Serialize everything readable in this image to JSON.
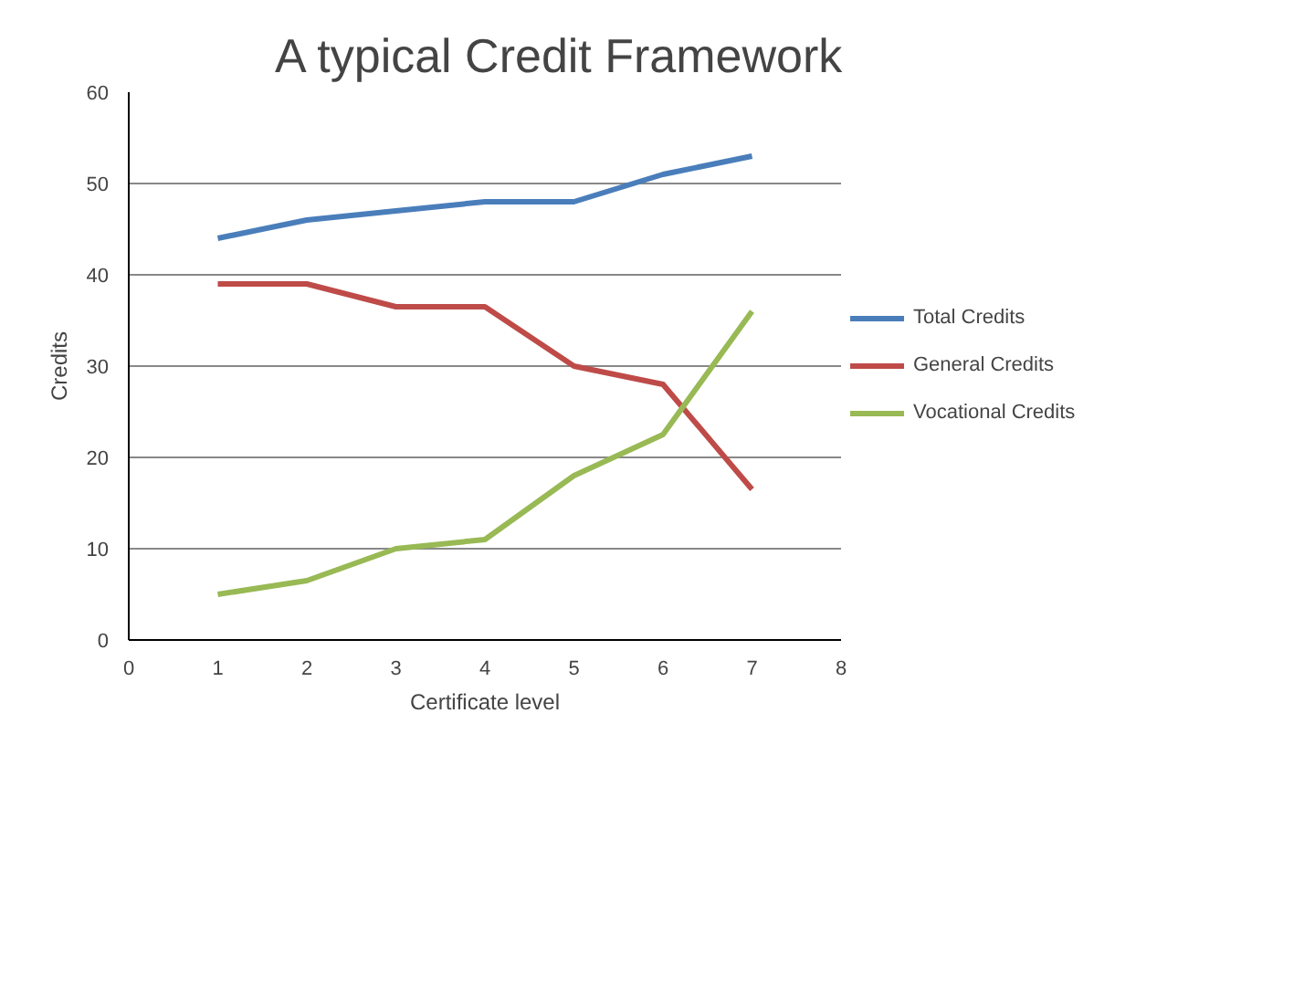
{
  "chart_data": {
    "type": "line",
    "title": "A typical Credit Framework",
    "xlabel": "Certificate level",
    "ylabel": "Credits",
    "x": [
      1,
      2,
      3,
      4,
      5,
      6,
      7
    ],
    "series": [
      {
        "name": "Total Credits",
        "color": "#4a7ebb",
        "values": [
          44,
          46,
          47,
          48,
          48,
          51,
          53
        ]
      },
      {
        "name": "General Credits",
        "color": "#be4b48",
        "values": [
          39,
          39,
          36.5,
          36.5,
          30,
          28,
          16.5
        ]
      },
      {
        "name": "Vocational Credits",
        "color": "#98b954",
        "values": [
          5,
          6.5,
          10,
          11,
          18,
          22.5,
          36
        ]
      }
    ],
    "xlim": [
      0,
      8
    ],
    "xticks": [
      0,
      1,
      2,
      3,
      4,
      5,
      6,
      7,
      8
    ],
    "ylim": [
      0,
      60
    ],
    "yticks": [
      0,
      10,
      20,
      30,
      40,
      50,
      60
    ],
    "grid": "y",
    "legend": "right",
    "marker": "none",
    "line_style": "solid"
  }
}
